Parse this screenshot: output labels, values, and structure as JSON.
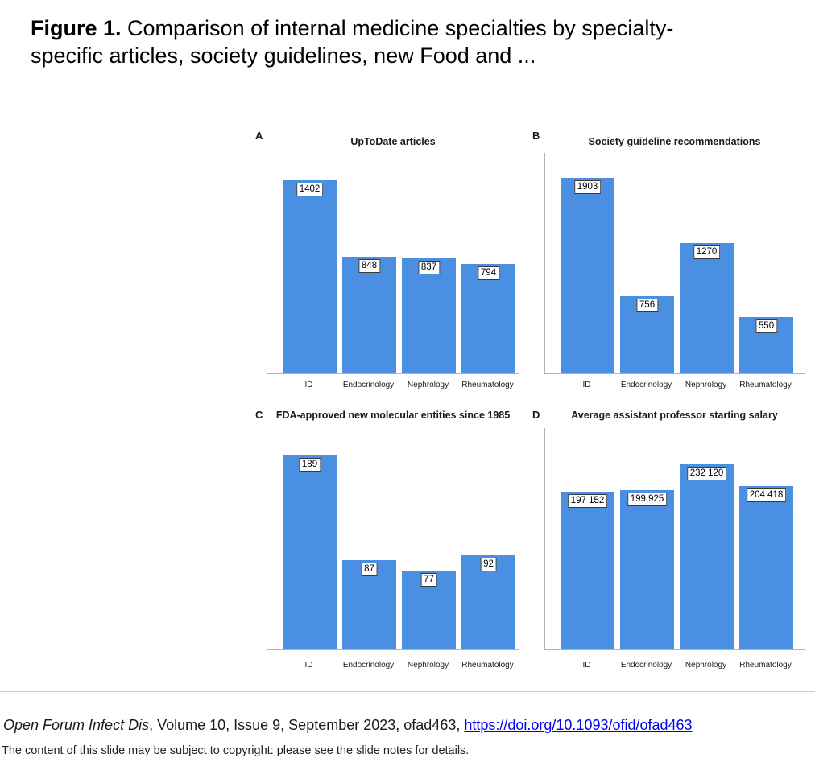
{
  "header": {
    "figure_label": "Figure 1.",
    "title_line1_rest": " Comparison of internal medicine specialties by specialty-",
    "title_line2": "specific articles, society guidelines, new Food and ..."
  },
  "chart_data": [
    {
      "type": "bar",
      "panel": "A",
      "title": "UpToDate articles",
      "categories": [
        "ID",
        "Endocrinology",
        "Nephrology",
        "Rheumatology"
      ],
      "values": [
        1402,
        848,
        837,
        794
      ],
      "value_labels": [
        "1402",
        "848",
        "837",
        "794"
      ],
      "xlabel": "",
      "ylabel": "",
      "ylim": [
        0,
        1600
      ],
      "grid": false,
      "legend": false,
      "bar_color": "#4a8fe2"
    },
    {
      "type": "bar",
      "panel": "B",
      "title": "Society guideline recommendations",
      "categories": [
        "ID",
        "Endocrinology",
        "Nephrology",
        "Rheumatology"
      ],
      "values": [
        1903,
        756,
        1270,
        550
      ],
      "value_labels": [
        "1903",
        "756",
        "1270",
        "550"
      ],
      "xlabel": "",
      "ylabel": "",
      "ylim": [
        0,
        2150
      ],
      "grid": false,
      "legend": false,
      "bar_color": "#4a8fe2"
    },
    {
      "type": "bar",
      "panel": "C",
      "title": "FDA-approved new molecular entities since 1985",
      "categories": [
        "ID",
        "Endocrinology",
        "Nephrology",
        "Rheumatology"
      ],
      "values": [
        189,
        87,
        77,
        92
      ],
      "value_labels": [
        "189",
        "87",
        "77",
        "92"
      ],
      "xlabel": "",
      "ylabel": "",
      "ylim": [
        0,
        216
      ],
      "grid": false,
      "legend": false,
      "bar_color": "#4a8fe2"
    },
    {
      "type": "bar",
      "panel": "D",
      "title": "Average assistant professor starting salary",
      "categories": [
        "ID",
        "Endocrinology",
        "Nephrology",
        "Rheumatology"
      ],
      "values": [
        197152,
        199925,
        232120,
        204418
      ],
      "value_labels": [
        "197 152",
        "199 925",
        "232 120",
        "204 418"
      ],
      "xlabel": "",
      "ylabel": "",
      "ylim": [
        0,
        277000
      ],
      "grid": false,
      "legend": false,
      "bar_color": "#4a8fe2"
    }
  ],
  "footer": {
    "journal_italic": "Open Forum Infect Dis",
    "citation_rest": ", Volume 10, Issue 9, September 2023, ofad463, ",
    "doi_link_text": "https://doi.org/10.1093/ofid/ofad463",
    "copyright_note": "The content of this slide may be subject to copyright: please see the slide notes for details."
  },
  "colors": {
    "bar_blue": "#4a8fe2",
    "axis_gray": "#b3b3b3",
    "divider_gray": "#cdcdcd",
    "link_blue": "#0000EE"
  }
}
